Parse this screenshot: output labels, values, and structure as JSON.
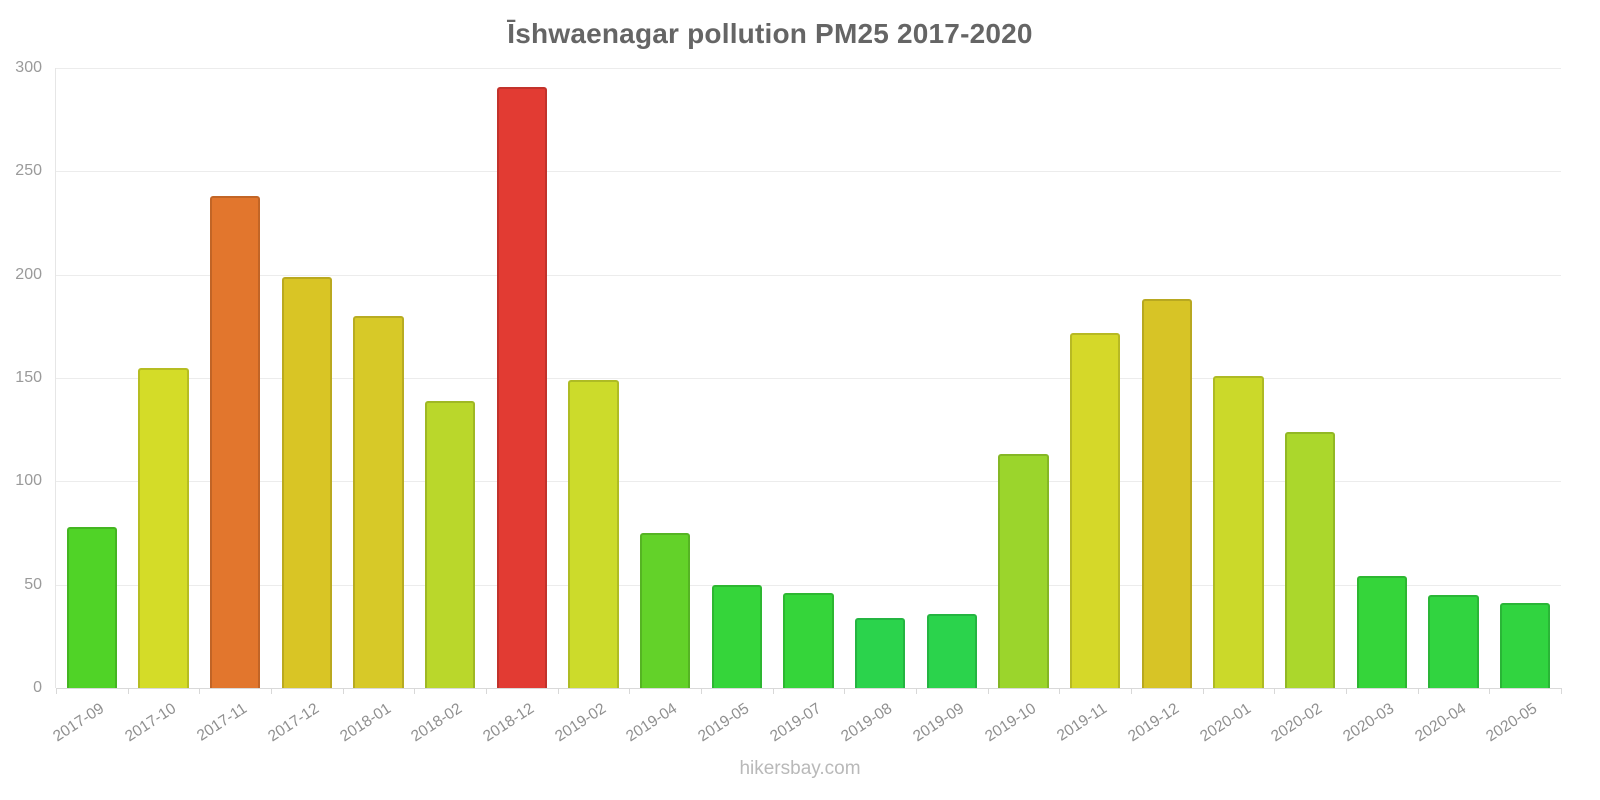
{
  "page": {
    "title": "Īshwaenagar pollution PM25 2017-2020",
    "footer": "hikersbay.com"
  },
  "chart_data": {
    "type": "bar",
    "title": "Īshwaenagar pollution PM25 2017-2020",
    "categories": [
      "2017-09",
      "2017-10",
      "2017-11",
      "2017-12",
      "2018-01",
      "2018-02",
      "2018-12",
      "2019-02",
      "2019-04",
      "2019-05",
      "2019-07",
      "2019-08",
      "2019-09",
      "2019-10",
      "2019-11",
      "2019-12",
      "2020-01",
      "2020-02",
      "2020-03",
      "2020-04",
      "2020-05"
    ],
    "values": [
      78,
      155,
      238,
      199,
      180,
      139,
      291,
      149,
      75,
      50,
      46,
      34,
      36,
      113,
      172,
      188,
      151,
      124,
      54,
      45,
      41
    ],
    "bar_colors": [
      "#50d327",
      "#d4dc28",
      "#e2762d",
      "#d9c525",
      "#d7c928",
      "#bad72b",
      "#e23b33",
      "#ccdb2b",
      "#63d229",
      "#35d53a",
      "#35d53a",
      "#2bd34c",
      "#2bd34c",
      "#9bd52c",
      "#d5d829",
      "#d7c426",
      "#cbd92a",
      "#abd72c",
      "#35d53a",
      "#31d440",
      "#31d440"
    ],
    "xlabel": "",
    "ylabel": "",
    "ylim": [
      0,
      300
    ],
    "yticks": [
      0,
      50,
      100,
      150,
      200,
      250,
      300
    ],
    "grid": true,
    "legend": "none",
    "colors": {
      "title": "#656565",
      "axis_text": "#9a9a9a",
      "grid": "#ececec",
      "watermark": "#b9b9b9",
      "background": "#ffffff"
    }
  }
}
